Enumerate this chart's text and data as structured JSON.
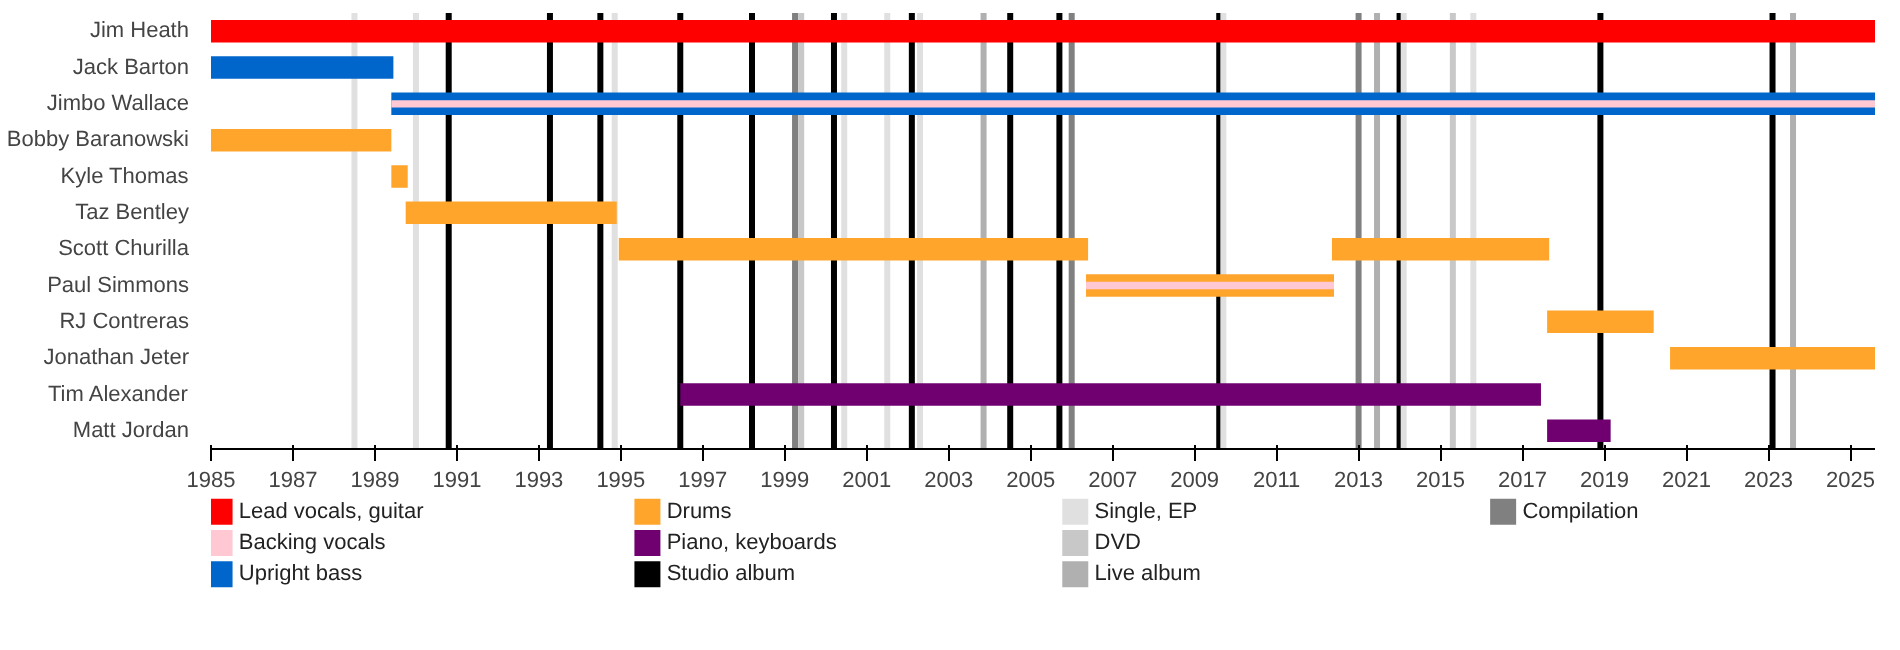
{
  "chart_data": {
    "type": "bar",
    "orientation": "horizontal",
    "categories": [
      "Jim Heath",
      "Jack Barton",
      "Jimbo Wallace",
      "Bobby Baranowski",
      "Kyle Thomas",
      "Taz Bentley",
      "Scott Churilla",
      "Paul Simmons",
      "RJ Contreras",
      "Jonathan Jeter",
      "Tim Alexander",
      "Matt Jordan"
    ],
    "xlim": [
      1985,
      2025.6
    ],
    "xticks": [
      1985,
      1987,
      1989,
      1991,
      1993,
      1995,
      1997,
      1999,
      2001,
      2003,
      2005,
      2007,
      2009,
      2011,
      2013,
      2015,
      2017,
      2019,
      2021,
      2023,
      2025
    ],
    "legend": "bottom",
    "grid": false,
    "series": [
      {
        "name": "Lead vocals, guitar",
        "color": "#ff0000",
        "base": [
          1985,
          null,
          null,
          null,
          null,
          null,
          null,
          null,
          null,
          null,
          null,
          null
        ],
        "values": [
          40.6,
          null,
          null,
          null,
          null,
          null,
          null,
          null,
          null,
          null,
          null,
          null
        ]
      },
      {
        "name": "Backing vocals",
        "color": "#ffc8d2",
        "base": [
          null,
          null,
          1989.4,
          null,
          null,
          null,
          null,
          2006.35,
          null,
          null,
          null,
          null
        ],
        "values": [
          null,
          null,
          36.2,
          null,
          null,
          null,
          null,
          6.05,
          null,
          null,
          null,
          null
        ]
      },
      {
        "name": "Upright bass",
        "color": "#0066cc",
        "base": [
          null,
          1985,
          1989.4,
          null,
          null,
          null,
          null,
          null,
          null,
          null,
          null,
          null
        ],
        "values": [
          null,
          4.45,
          36.2,
          null,
          null,
          null,
          null,
          null,
          null,
          null,
          null,
          null
        ]
      },
      {
        "name": "Drums",
        "color": "#ffa52c",
        "base": [
          null,
          null,
          null,
          1985,
          1989.4,
          1989.75,
          1994.95,
          2006.35,
          2017.6,
          2020.6,
          null,
          null
        ],
        "values": [
          null,
          null,
          null,
          4.4,
          0.4,
          5.15,
          11.45,
          6.05,
          2.6,
          5.0,
          null,
          null
        ]
      },
      {
        "color": "#ffa52c",
        "base": [
          null,
          null,
          null,
          null,
          null,
          null,
          2012.35,
          null,
          null,
          null,
          null,
          null
        ],
        "values": [
          null,
          null,
          null,
          null,
          null,
          null,
          5.3,
          null,
          null,
          null,
          null,
          null
        ]
      },
      {
        "name": "Piano, keyboards",
        "color": "#700070",
        "base": [
          null,
          null,
          null,
          null,
          null,
          null,
          null,
          null,
          null,
          null,
          1996.45,
          2017.6
        ],
        "values": [
          null,
          null,
          null,
          null,
          null,
          null,
          null,
          null,
          null,
          null,
          21.0,
          1.55
        ]
      }
    ],
    "ref_lines": [
      {
        "axis": "x",
        "value": 1990.8,
        "label": "Studio album",
        "color": "#000000"
      },
      {
        "axis": "x",
        "value": 1993.27,
        "color": "#000000"
      },
      {
        "axis": "x",
        "value": 1994.5,
        "color": "#000000"
      },
      {
        "axis": "x",
        "value": 1996.45,
        "color": "#000000"
      },
      {
        "axis": "x",
        "value": 1998.2,
        "color": "#000000"
      },
      {
        "axis": "x",
        "value": 2000.2,
        "color": "#000000"
      },
      {
        "axis": "x",
        "value": 2002.1,
        "color": "#000000"
      },
      {
        "axis": "x",
        "value": 2004.5,
        "color": "#000000"
      },
      {
        "axis": "x",
        "value": 2005.7,
        "color": "#000000"
      },
      {
        "axis": "x",
        "value": 2009.6,
        "color": "#000000"
      },
      {
        "axis": "x",
        "value": 2014.0,
        "color": "#000000"
      },
      {
        "axis": "x",
        "value": 2018.9,
        "color": "#000000"
      },
      {
        "axis": "x",
        "value": 2023.1,
        "color": "#000000"
      },
      {
        "axis": "x",
        "value": 1988.5,
        "label": "Single, EP",
        "color": "#e0e0e0"
      },
      {
        "axis": "x",
        "value": 1990.0,
        "color": "#e0e0e0"
      },
      {
        "axis": "x",
        "value": 1994.85,
        "color": "#e0e0e0"
      },
      {
        "axis": "x",
        "value": 2000.45,
        "color": "#e0e0e0"
      },
      {
        "axis": "x",
        "value": 2001.5,
        "color": "#e0e0e0"
      },
      {
        "axis": "x",
        "value": 2002.3,
        "color": "#e0e0e0"
      },
      {
        "axis": "x",
        "value": 2009.7,
        "color": "#e0e0e0"
      },
      {
        "axis": "x",
        "value": 2014.1,
        "color": "#e0e0e0"
      },
      {
        "axis": "x",
        "value": 2015.8,
        "color": "#e0e0e0"
      },
      {
        "axis": "x",
        "value": 1999.4,
        "label": "DVD",
        "color": "#c8c8c8"
      },
      {
        "axis": "x",
        "value": 2015.3,
        "color": "#c8c8c8"
      },
      {
        "axis": "x",
        "value": 2003.85,
        "label": "Live album",
        "color": "#b0b0b0"
      },
      {
        "axis": "x",
        "value": 2013.45,
        "color": "#b0b0b0"
      },
      {
        "axis": "x",
        "value": 2023.6,
        "color": "#b0b0b0"
      },
      {
        "axis": "x",
        "value": 1999.25,
        "label": "Compilation",
        "color": "#808080"
      },
      {
        "axis": "x",
        "value": 2006.0,
        "color": "#808080"
      },
      {
        "axis": "x",
        "value": 2013.0,
        "color": "#808080"
      }
    ]
  }
}
